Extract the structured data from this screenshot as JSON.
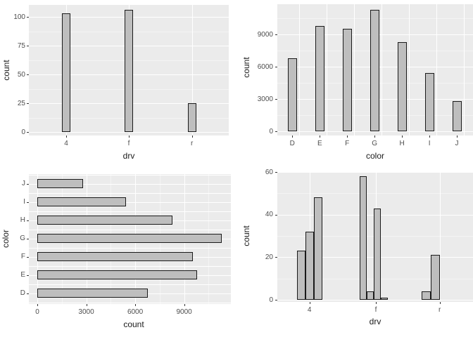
{
  "page": {
    "background": "#ffffff"
  },
  "theme": {
    "panel_bg": "#EBEBEB",
    "grid_major": "#FFFFFF",
    "grid_minor": "#F4F4F4",
    "bar_fill": "#BEBEBE",
    "bar_stroke": "#1A1A1A",
    "tick_mark": "#333333",
    "tick_label_color": "#4D4D4D",
    "axis_title_color": "#1A1A1A"
  },
  "chart_data": [
    {
      "id": "count-by-drv",
      "type": "bar",
      "orientation": "vertical",
      "title": "",
      "xlabel": "drv",
      "ylabel": "count",
      "categories": [
        "4",
        "f",
        "r"
      ],
      "values": [
        103,
        106,
        25
      ],
      "y_ticks": [
        0,
        25,
        50,
        75,
        100
      ],
      "y_minor": [
        12.5,
        37.5,
        62.5,
        87.5
      ],
      "ylim": [
        0,
        111
      ],
      "grid": true,
      "legend": "none"
    },
    {
      "id": "count-by-diamond-color",
      "type": "bar",
      "orientation": "vertical",
      "title": "",
      "xlabel": "color",
      "ylabel": "count",
      "categories": [
        "D",
        "E",
        "F",
        "G",
        "H",
        "I",
        "J"
      ],
      "values": [
        6775,
        9797,
        9542,
        11292,
        8304,
        5422,
        2808
      ],
      "y_ticks": [
        0,
        3000,
        6000,
        9000
      ],
      "y_minor": [
        1500,
        4500,
        7500,
        10500
      ],
      "ylim": [
        0,
        11860
      ],
      "grid": true,
      "legend": "none"
    },
    {
      "id": "count-by-diamond-color-flipped",
      "type": "bar",
      "orientation": "horizontal",
      "title": "",
      "xlabel": "count",
      "ylabel": "color",
      "categories": [
        "J",
        "I",
        "H",
        "G",
        "F",
        "E",
        "D"
      ],
      "values": [
        2808,
        5422,
        8304,
        11292,
        9542,
        9797,
        6775
      ],
      "x_ticks": [
        0,
        3000,
        6000,
        9000
      ],
      "x_minor": [
        1500,
        4500,
        7500,
        10500
      ],
      "xlim": [
        0,
        11860
      ],
      "grid": true,
      "legend": "none"
    },
    {
      "id": "count-by-drv-dodged",
      "type": "bar",
      "orientation": "vertical",
      "variant": "dodge",
      "title": "",
      "xlabel": "drv",
      "ylabel": "count",
      "categories": [
        "4",
        "f",
        "r"
      ],
      "groups": [
        [
          23,
          32,
          48
        ],
        [
          58,
          4,
          43,
          1
        ],
        [
          4,
          21
        ]
      ],
      "y_ticks": [
        0,
        20,
        40,
        60
      ],
      "y_minor": [
        10,
        30,
        50
      ],
      "ylim": [
        0,
        61
      ],
      "grid": true,
      "legend": "none"
    }
  ]
}
